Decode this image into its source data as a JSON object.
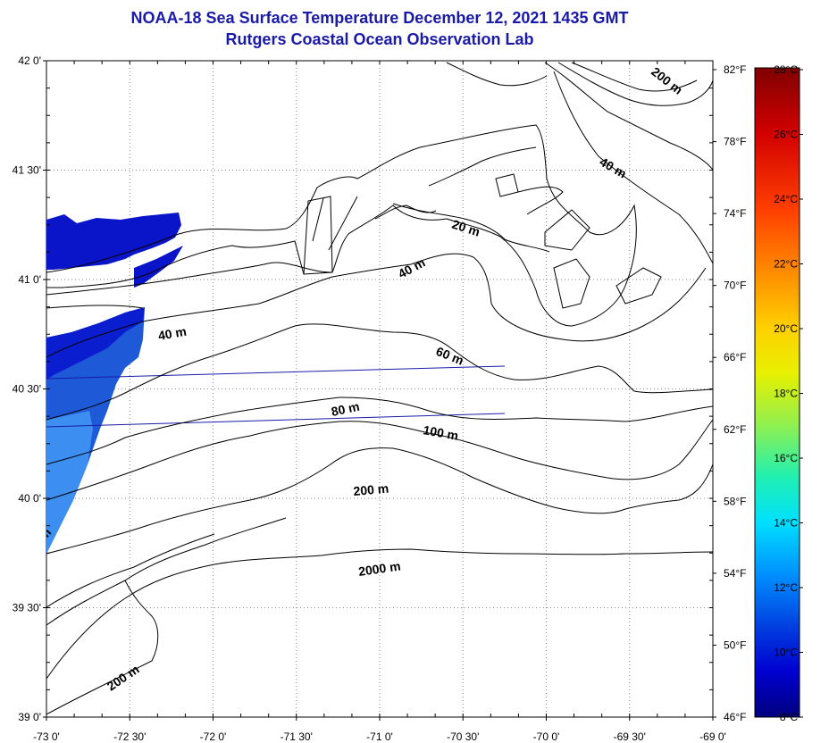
{
  "title": "NOAA-18 Sea Surface Temperature December 12, 2021 1435 GMT",
  "subtitle": "Rutgers Coastal Ocean Observation Lab",
  "axes": {
    "lat_ticks": [
      "42 0'",
      "41 30'",
      "41 0'",
      "40 30'",
      "40 0'",
      "39 30'",
      "39 0'"
    ],
    "lon_ticks": [
      "-73 0'",
      "-72 30'",
      "-72 0'",
      "-71 30'",
      "-71 0'",
      "-70 30'",
      "-70 0'",
      "-69 30'",
      "-69 0'"
    ]
  },
  "fahrenheit_ticks": [
    "82°F",
    "78°F",
    "74°F",
    "70°F",
    "66°F",
    "62°F",
    "58°F",
    "54°F",
    "50°F",
    "46°F"
  ],
  "celsius_ticks": [
    "28°C",
    "26°C",
    "24°C",
    "22°C",
    "20°C",
    "18°C",
    "16°C",
    "14°C",
    "12°C",
    "10°C",
    "8°C"
  ],
  "contour_labels": [
    "200 m",
    "40 m",
    "20 m",
    "40 m",
    "40 m",
    "60 m",
    "80 m",
    "100 m",
    "200 m",
    "2000 m",
    "200 m",
    "m"
  ],
  "colors": {
    "title": "#1a1aa8",
    "sst_cold": "#0a14c8",
    "sst_mid": "#1e64e0",
    "sst_warm": "#3c96f0",
    "track": "#1a1aa8"
  }
}
